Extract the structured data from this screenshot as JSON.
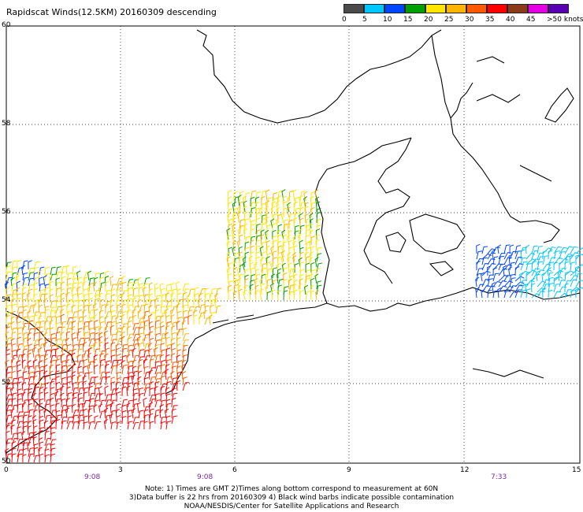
{
  "title": "Rapidscat Winds(12.5KM) 20160309 descending",
  "colorbar": {
    "swatches": [
      "#4a4a4a",
      "#00c8ff",
      "#0046ff",
      "#00a000",
      "#ffe600",
      "#ffb400",
      "#ff5a00",
      "#ff0000",
      "#8b3a1a",
      "#e600e6",
      "#5a00b4"
    ],
    "labels": [
      "0",
      "5",
      "10",
      "15",
      "20",
      "25",
      "30",
      "35",
      "40",
      "45",
      ">50 knots"
    ]
  },
  "axes": {
    "lat_labels": [
      "60",
      "58",
      "56",
      "54",
      "52",
      "50"
    ],
    "lon_labels": [
      "0",
      "3",
      "6",
      "9",
      "12",
      "15"
    ],
    "time_labels": [
      "9:08",
      "9:08",
      "7:33"
    ]
  },
  "notes": [
    "Note: 1) Times are GMT 2)Times along bottom correspond to measurement at 60N",
    "3)Data buffer is 22 hrs from 20160309 4) Black wind barbs indicate possible contamination",
    "NOAA/NESDIS/Center for Satellite Applications and Research"
  ]
}
